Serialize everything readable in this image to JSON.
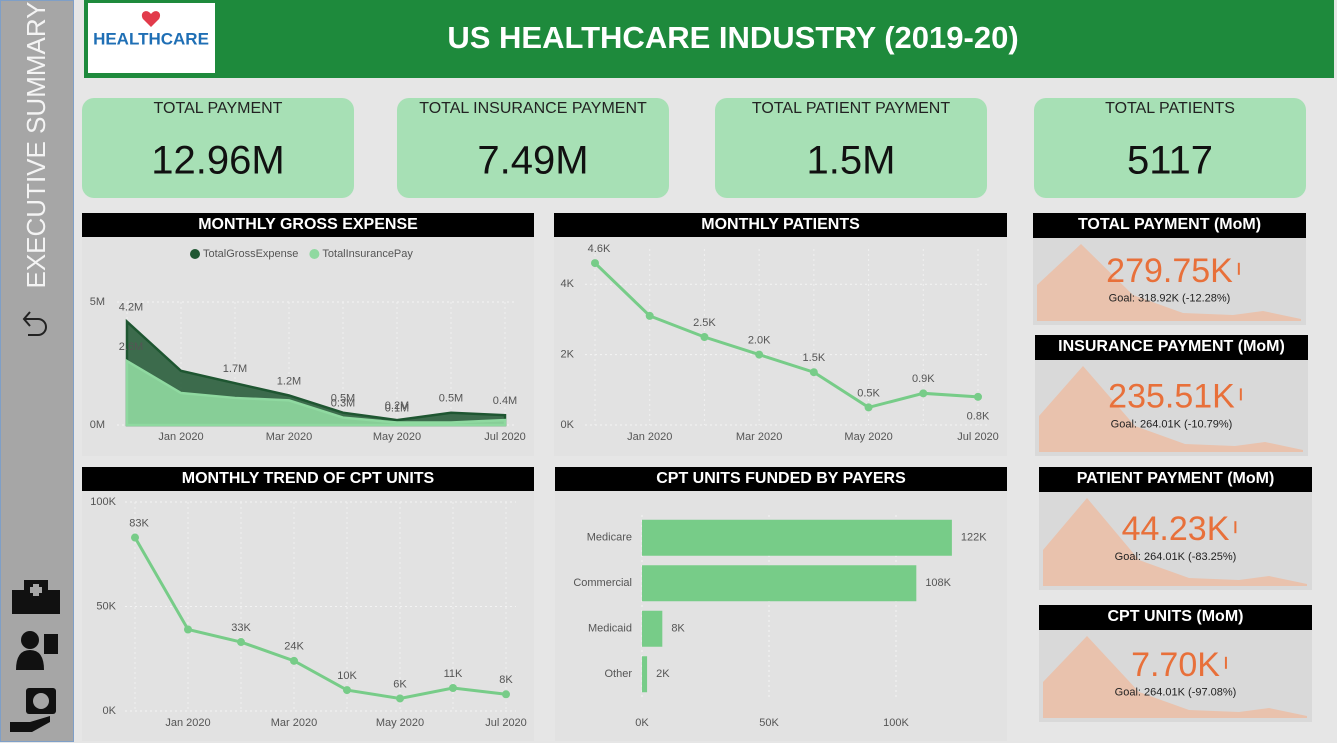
{
  "header": {
    "title": "US HEALTHCARE INDUSTRY (2019-20)",
    "logo_text": "HEALTHCARE",
    "sidebar_label": "EXECUTIVE SUMMARY"
  },
  "summary": [
    {
      "label": "TOTAL PAYMENT",
      "value": "12.96M"
    },
    {
      "label": "TOTAL INSURANCE PAYMENT",
      "value": "7.49M"
    },
    {
      "label": "TOTAL PATIENT PAYMENT",
      "value": "1.5M"
    },
    {
      "label": "TOTAL PATIENTS",
      "value": "5117"
    }
  ],
  "kpi_cards": [
    {
      "title": "TOTAL PAYMENT (MoM)",
      "value": "279.75K",
      "goal": "Goal: 318.92K (-12.28%)"
    },
    {
      "title": "INSURANCE PAYMENT (MoM)",
      "value": "235.51K",
      "goal": "Goal: 264.01K (-10.79%)"
    },
    {
      "title": "PATIENT PAYMENT (MoM)",
      "value": "44.23K",
      "goal": "Goal: 264.01K (-83.25%)"
    },
    {
      "title": "CPT UNITS (MoM)",
      "value": "7.70K",
      "goal": "Goal: 264.01K (-97.08%)"
    }
  ],
  "chart_data": [
    {
      "type": "area",
      "title": "MONTHLY GROSS EXPENSE",
      "categories": [
        null,
        "Jan 2020",
        null,
        "Mar 2020",
        null,
        "May 2020",
        null,
        "Jul 2020"
      ],
      "series": [
        {
          "name": "TotalGrossExpense",
          "color": "#1e5631",
          "values": [
            4.2,
            2.2,
            1.7,
            1.2,
            0.5,
            0.2,
            0.5,
            0.4
          ],
          "value_labels": [
            "4.2M",
            null,
            "1.7M",
            "1.2M",
            "0.5M",
            "0.2M",
            "0.5M",
            "0.4M"
          ]
        },
        {
          "name": "TotalInsurancePay",
          "color": "#8fd9a0",
          "values": [
            2.6,
            1.3,
            1.1,
            1.0,
            0.3,
            0.1,
            0.1,
            0.2
          ],
          "value_labels": [
            "2.6M",
            null,
            null,
            null,
            "0.3M",
            "0.1M",
            null,
            null
          ]
        }
      ],
      "ylim": [
        0,
        5
      ],
      "yticks": [
        {
          "value": 0,
          "label": "0M"
        },
        {
          "value": 5,
          "label": "5M"
        }
      ],
      "grid": true
    },
    {
      "type": "line",
      "title": "MONTHLY PATIENTS",
      "categories": [
        null,
        "Jan 2020",
        null,
        "Mar 2020",
        null,
        "May 2020",
        null,
        "Jul 2020"
      ],
      "series": [
        {
          "name": "Patients",
          "color": "#77cc88",
          "values": [
            4.6,
            3.1,
            2.5,
            2.0,
            1.5,
            0.5,
            0.9,
            0.8
          ],
          "value_labels": [
            "4.6K",
            null,
            "2.5K",
            "2.0K",
            "1.5K",
            "0.5K",
            "0.9K",
            "0.8K"
          ]
        }
      ],
      "ylim": [
        0,
        5
      ],
      "yticks": [
        {
          "value": 0,
          "label": "0K"
        },
        {
          "value": 2,
          "label": "2K"
        },
        {
          "value": 4,
          "label": "4K"
        }
      ],
      "grid": true
    },
    {
      "type": "line",
      "title": "MONTHLY TREND OF CPT UNITS",
      "categories": [
        null,
        "Jan 2020",
        null,
        "Mar 2020",
        null,
        "May 2020",
        null,
        "Jul 2020"
      ],
      "series": [
        {
          "name": "CPT Units",
          "color": "#77cc88",
          "values": [
            83,
            39,
            33,
            24,
            10,
            6,
            11,
            8
          ],
          "value_labels": [
            "83K",
            null,
            "33K",
            "24K",
            "10K",
            "6K",
            "11K",
            "8K"
          ]
        }
      ],
      "ylim": [
        0,
        100
      ],
      "yticks": [
        {
          "value": 0,
          "label": "0K"
        },
        {
          "value": 50,
          "label": "50K"
        },
        {
          "value": 100,
          "label": "100K"
        }
      ],
      "grid": true
    },
    {
      "type": "bar",
      "orientation": "horizontal",
      "title": "CPT UNITS FUNDED BY PAYERS",
      "categories": [
        "Medicare",
        "Commercial",
        "Medicaid",
        "Other"
      ],
      "values": [
        122,
        108,
        8,
        2
      ],
      "value_labels": [
        "122K",
        "108K",
        "8K",
        "2K"
      ],
      "color": "#77cc88",
      "xlim": [
        0,
        140
      ],
      "xticks": [
        {
          "value": 0,
          "label": "0K"
        },
        {
          "value": 50,
          "label": "50K"
        },
        {
          "value": 100,
          "label": "100K"
        }
      ],
      "grid": true
    }
  ]
}
